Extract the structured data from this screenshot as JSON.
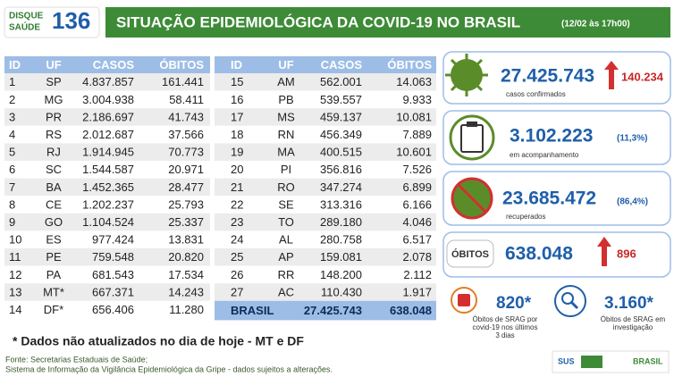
{
  "header": {
    "logo": {
      "line1": "DISQUE",
      "line2": "SAÚDE",
      "number": "136"
    },
    "title": "SITUAÇÃO EPIDEMIOLÓGICA DA COVID-19 NO BRASIL",
    "date": "(12/02 às 17h00)"
  },
  "left_table": {
    "header": [
      "ID",
      "UF",
      "CASOS",
      "ÓBITOS"
    ],
    "rows": [
      [
        "1",
        "SP",
        "4.837.857",
        "161.441"
      ],
      [
        "2",
        "MG",
        "3.004.938",
        "58.411"
      ],
      [
        "3",
        "PR",
        "2.186.697",
        "41.743"
      ],
      [
        "4",
        "RS",
        "2.012.687",
        "37.566"
      ],
      [
        "5",
        "RJ",
        "1.914.945",
        "70.773"
      ],
      [
        "6",
        "SC",
        "1.544.587",
        "20.971"
      ],
      [
        "7",
        "BA",
        "1.452.365",
        "28.477"
      ],
      [
        "8",
        "CE",
        "1.202.237",
        "25.793"
      ],
      [
        "9",
        "GO",
        "1.104.524",
        "25.337"
      ],
      [
        "10",
        "ES",
        "977.424",
        "13.831"
      ],
      [
        "11",
        "PE",
        "759.548",
        "20.820"
      ],
      [
        "12",
        "PA",
        "681.543",
        "17.534"
      ],
      [
        "13",
        "MT*",
        "667.371",
        "14.243"
      ],
      [
        "14",
        "DF*",
        "656.406",
        "11.280"
      ]
    ]
  },
  "right_table": {
    "header": [
      "ID",
      "UF",
      "CASOS",
      "ÓBITOS"
    ],
    "rows": [
      [
        "15",
        "AM",
        "562.001",
        "14.063"
      ],
      [
        "16",
        "PB",
        "539.557",
        "9.933"
      ],
      [
        "17",
        "MS",
        "459.137",
        "10.081"
      ],
      [
        "18",
        "RN",
        "456.349",
        "7.889"
      ],
      [
        "19",
        "MA",
        "400.515",
        "10.601"
      ],
      [
        "20",
        "PI",
        "356.816",
        "7.526"
      ],
      [
        "21",
        "RO",
        "347.274",
        "6.899"
      ],
      [
        "22",
        "SE",
        "313.316",
        "6.166"
      ],
      [
        "23",
        "TO",
        "289.180",
        "4.046"
      ],
      [
        "24",
        "AL",
        "280.758",
        "6.517"
      ],
      [
        "25",
        "AP",
        "159.081",
        "2.078"
      ],
      [
        "26",
        "RR",
        "148.200",
        "2.112"
      ],
      [
        "27",
        "AC",
        "110.430",
        "1.917"
      ]
    ],
    "total": [
      "BRASIL",
      "27.425.743",
      "638.048"
    ]
  },
  "cards": {
    "confirmed": {
      "value": "27.425.743",
      "change": "140.234",
      "label": "casos confirmados"
    },
    "monitoring": {
      "value": "3.102.223",
      "percent": "(11,3%)",
      "label": "em acompanhamento"
    },
    "recovered": {
      "value": "23.685.472",
      "percent": "(86,4%)",
      "label": "recuperados"
    },
    "deaths": {
      "badge": "ÓBITOS",
      "value": "638.048",
      "change": "896"
    },
    "srag_recent": {
      "value": "820*",
      "label": [
        "Óbitos de SRAG por",
        "covid-19 nos últimos",
        "3 dias"
      ]
    },
    "srag_investigation": {
      "value": "3.160*",
      "label": [
        "Óbitos de SRAG em",
        "investigação"
      ]
    }
  },
  "footer": {
    "note": "* Dados não atualizados no dia de hoje - MT e DF",
    "sources": [
      "Fonte: Secretarias Estaduais de Saúde;",
      "Sistema de Informação da Vigilância Epidemiológica da Gripe - dados sujeitos a alterações."
    ],
    "logos": {
      "sus": "SUS",
      "gov": "BRASIL"
    }
  }
}
